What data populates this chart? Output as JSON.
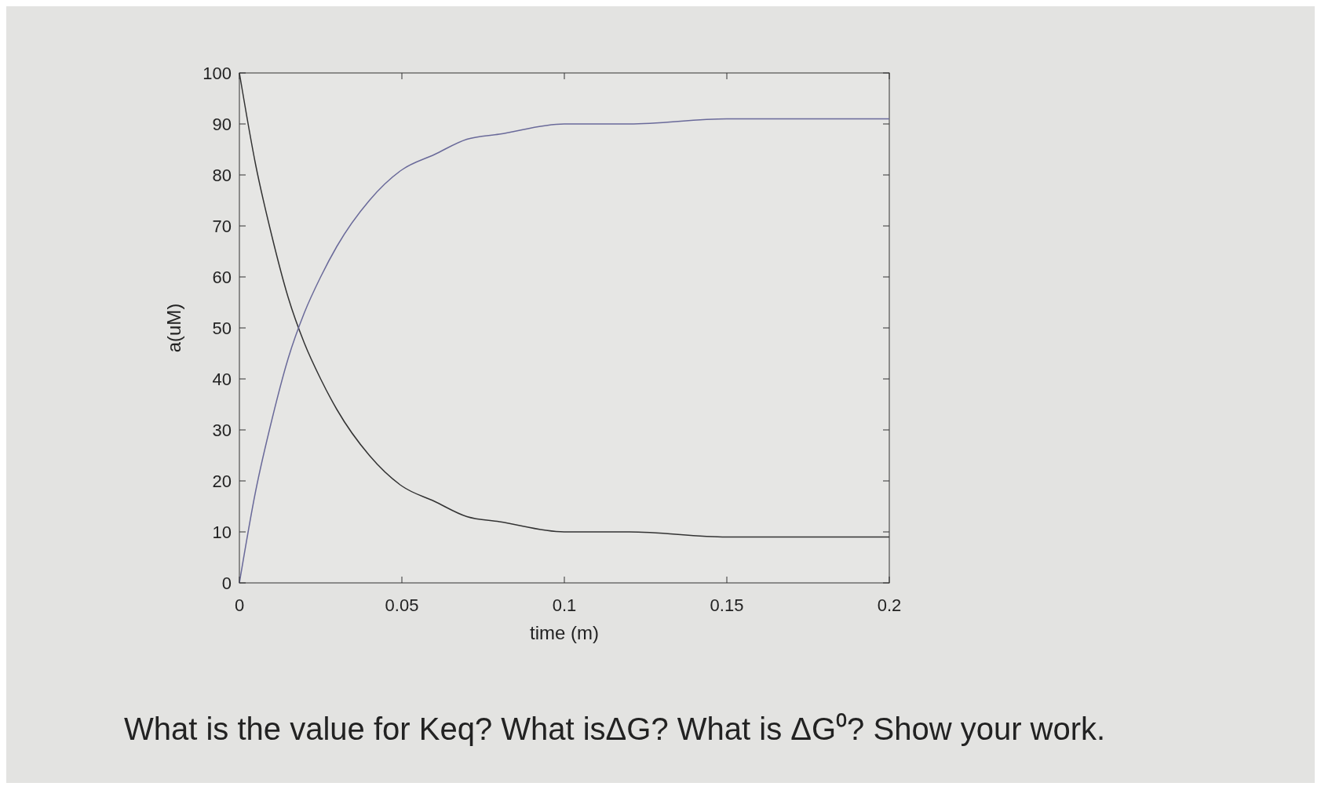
{
  "chart_data": {
    "type": "line",
    "xlabel": "time (m)",
    "ylabel": "a(uM)",
    "x": [
      0,
      0.005,
      0.01,
      0.015,
      0.02,
      0.025,
      0.03,
      0.04,
      0.05,
      0.06,
      0.07,
      0.08,
      0.1,
      0.12,
      0.15,
      0.2
    ],
    "series": [
      {
        "color": "#333333",
        "values": [
          100,
          82,
          68,
          56,
          47,
          40,
          34,
          25,
          19,
          16,
          13,
          12,
          10,
          10,
          9,
          9
        ]
      },
      {
        "color": "#6a6a9a",
        "values": [
          0,
          18,
          32,
          44,
          53,
          60,
          66,
          75,
          81,
          84,
          87,
          88,
          90,
          90,
          91,
          91
        ]
      }
    ],
    "xlim": [
      0,
      0.2
    ],
    "xticks": [
      0,
      0.05,
      0.1,
      0.15,
      0.2
    ],
    "ylim": [
      0,
      100
    ],
    "yticks": [
      0,
      10,
      20,
      30,
      40,
      50,
      60,
      70,
      80,
      90,
      100
    ],
    "grid": false,
    "marker": "none",
    "line_style": "solid",
    "annotations": [
      "What is the value for Keq? What isΔG? What is ΔG⁰? Show your work."
    ]
  }
}
